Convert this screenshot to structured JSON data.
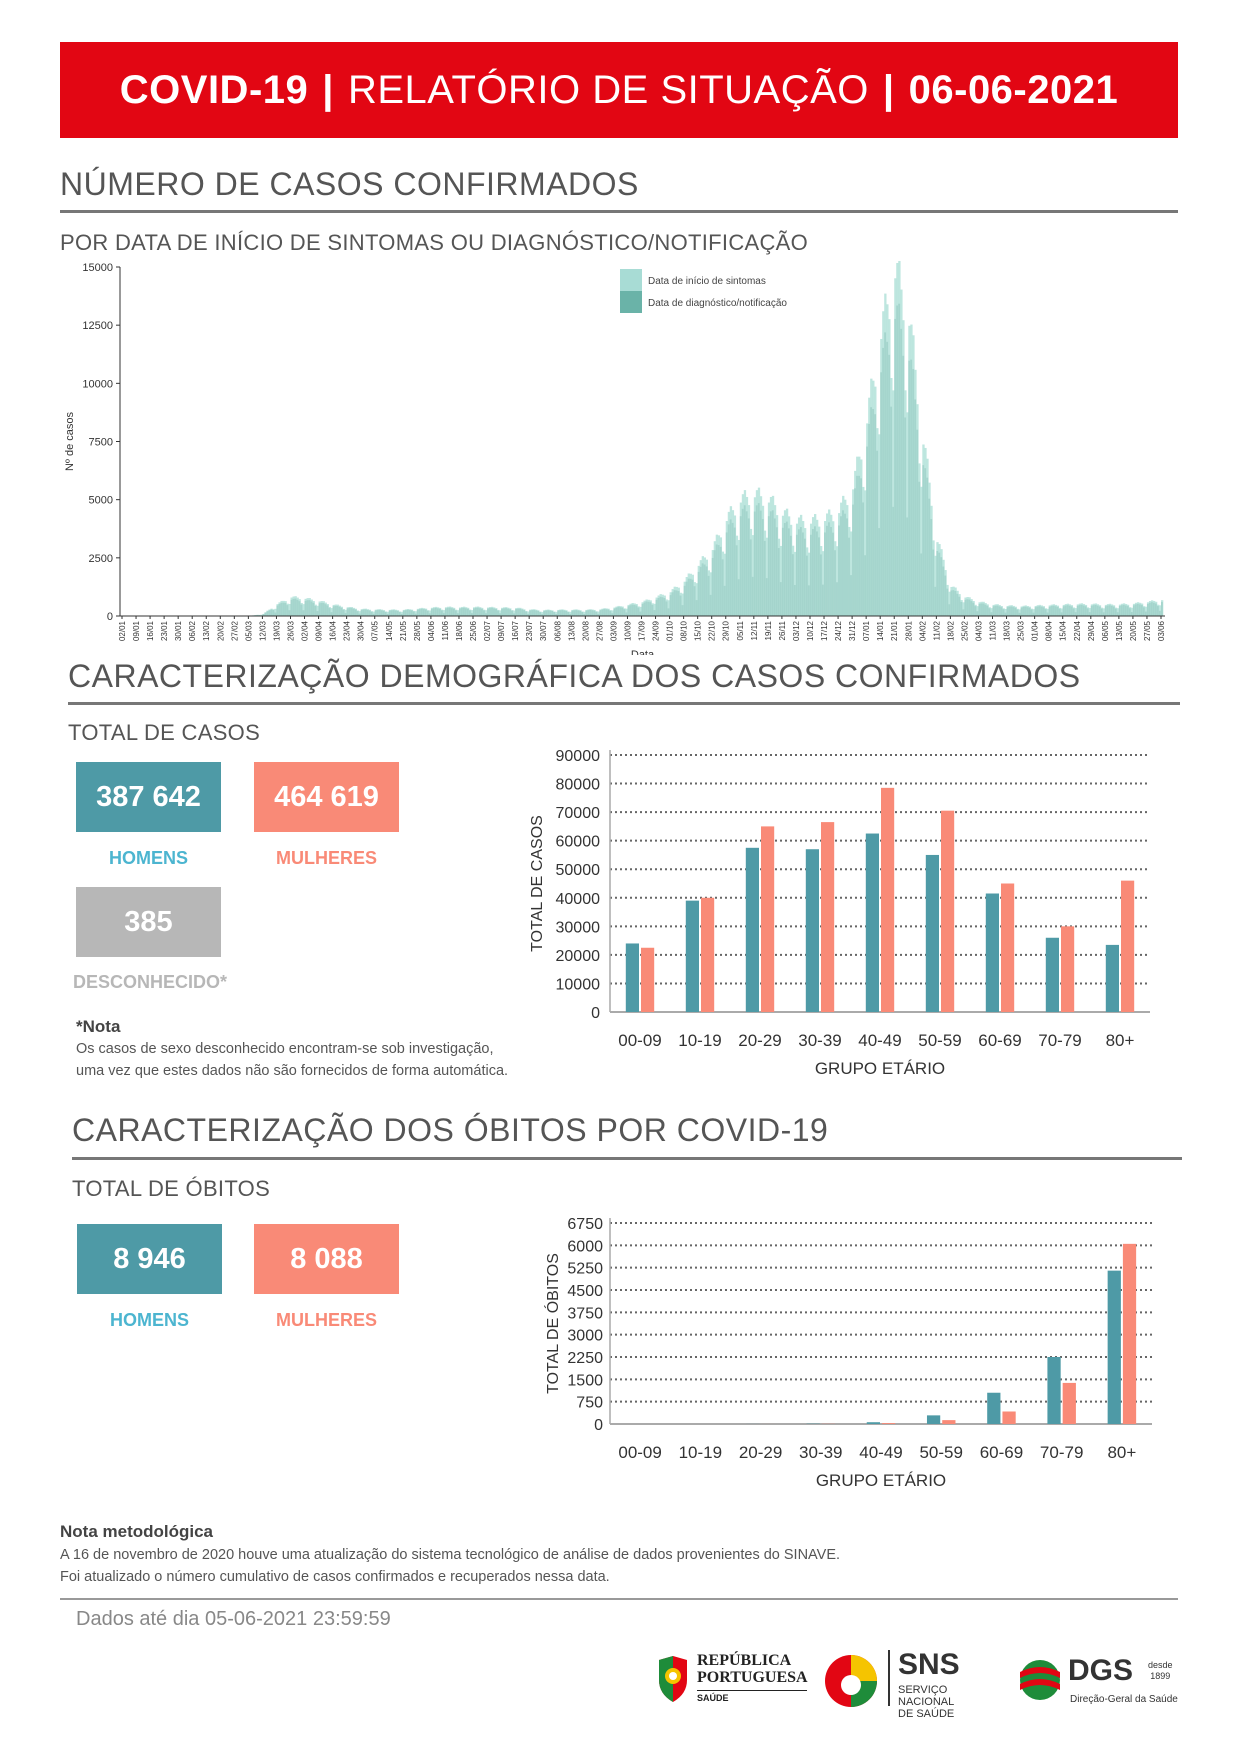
{
  "header": {
    "title_bold": "COVID-19",
    "separator": "|",
    "title_main": "RELATÓRIO DE SITUAÇÃO",
    "date": "06-06-2021"
  },
  "section_cases": {
    "title": "NÚMERO DE CASOS CONFIRMADOS",
    "subtitle": "POR DATA DE INÍCIO DE SINTOMAS OU DIAGNÓSTICO/NOTIFICAÇÃO"
  },
  "section_demo": {
    "title": "CARACTERIZAÇÃO DEMOGRÁFICA DOS CASOS CONFIRMADOS",
    "subtitle": "TOTAL DE CASOS",
    "men_value": "387 642",
    "men_label": "HOMENS",
    "women_value": "464 619",
    "women_label": "MULHERES",
    "unknown_value": "385",
    "unknown_label": "DESCONHECIDO*",
    "note_title": "*Nota",
    "note_line1": "Os casos de sexo desconhecido encontram-se sob investigação,",
    "note_line2": "uma vez que estes dados não são fornecidos de forma automática."
  },
  "section_deaths": {
    "title": "CARACTERIZAÇÃO DOS ÓBITOS POR COVID-19",
    "subtitle": "TOTAL DE ÓBITOS",
    "men_value": "8 946",
    "men_label": "HOMENS",
    "women_value": "8 088",
    "women_label": "MULHERES"
  },
  "methodology": {
    "title": "Nota metodológica",
    "line1": "A 16 de novembro de 2020 houve uma atualização do sistema tecnológico de análise de dados provenientes do SINAVE.",
    "line2": "Foi atualizado o número cumulativo de casos confirmados e recuperados nessa data."
  },
  "footer": {
    "data_until": "Dados até dia 05-06-2021 23:59:59",
    "logo_rp_line1": "REPÚBLICA",
    "logo_rp_line2": "PORTUGUESA",
    "logo_rp_line3": "SAÚDE",
    "logo_sns": "SNS",
    "logo_sns_sub1": "SERVIÇO NACIONAL",
    "logo_sns_sub2": "DE SAÚDE",
    "logo_dgs": "DGS",
    "logo_dgs_since": "desde",
    "logo_dgs_year": "1899",
    "logo_dgs_sub": "Direção-Geral da Saúde"
  },
  "colors": {
    "red": "#e20613",
    "teal": "#4e9aa6",
    "salmon": "#f98a77",
    "light_teal": "#a8dcd5",
    "dark_teal": "#6ab3a8"
  },
  "chart_data": [
    {
      "type": "area",
      "ylabel": "Nº de casos",
      "xlabel": "Data",
      "ylim": [
        0,
        15000
      ],
      "yticks": [
        0,
        2500,
        5000,
        7500,
        10000,
        12500,
        15000
      ],
      "legend_position": "top-right",
      "series": [
        {
          "name": "Data de início de sintomas"
        },
        {
          "name": "Data de diagnóstico/notificação"
        }
      ],
      "x": [
        "02/01",
        "09/01",
        "16/01",
        "23/01",
        "30/01",
        "06/02",
        "13/02",
        "20/02",
        "27/02",
        "05/03",
        "12/03",
        "19/03",
        "26/03",
        "02/04",
        "09/04",
        "16/04",
        "23/04",
        "30/04",
        "07/05",
        "14/05",
        "21/05",
        "28/05",
        "04/06",
        "11/06",
        "18/06",
        "25/06",
        "02/07",
        "09/07",
        "16/07",
        "23/07",
        "30/07",
        "06/08",
        "13/08",
        "20/08",
        "27/08",
        "03/09",
        "10/09",
        "17/09",
        "24/09",
        "01/10",
        "08/10",
        "15/10",
        "22/10",
        "29/10",
        "05/11",
        "12/11",
        "19/11",
        "26/11",
        "03/12",
        "10/12",
        "17/12",
        "24/12",
        "31/12",
        "07/01",
        "14/01",
        "21/01",
        "28/01",
        "04/02",
        "11/02",
        "18/02",
        "25/02",
        "04/03",
        "11/03",
        "18/03",
        "25/03",
        "01/04",
        "08/04",
        "15/04",
        "22/04",
        "29/04",
        "06/05",
        "13/05",
        "20/05",
        "27/05",
        "03/06"
      ],
      "values": [
        0,
        0,
        0,
        0,
        0,
        0,
        0,
        0,
        0,
        0,
        80,
        450,
        700,
        650,
        550,
        420,
        330,
        260,
        240,
        230,
        230,
        270,
        310,
        330,
        320,
        330,
        320,
        310,
        300,
        240,
        220,
        230,
        230,
        230,
        250,
        320,
        420,
        520,
        700,
        900,
        1300,
        1900,
        2500,
        3600,
        4300,
        4500,
        4300,
        3800,
        3500,
        3500,
        3600,
        3900,
        4800,
        7300,
        10500,
        12800,
        11000,
        6500,
        2800,
        1100,
        700,
        520,
        420,
        380,
        360,
        380,
        400,
        420,
        440,
        440,
        420,
        430,
        460,
        520,
        600
      ]
    },
    {
      "type": "bar",
      "xlabel": "GRUPO ETÁRIO",
      "ylabel": "TOTAL DE CASOS",
      "ylim": [
        0,
        90000
      ],
      "yticks": [
        0,
        10000,
        20000,
        30000,
        40000,
        50000,
        60000,
        70000,
        80000,
        90000
      ],
      "categories": [
        "00-09",
        "10-19",
        "20-29",
        "30-39",
        "40-49",
        "50-59",
        "60-69",
        "70-79",
        "80+"
      ],
      "series": [
        {
          "values": [
            24000,
            39000,
            57500,
            57000,
            62500,
            55000,
            41500,
            26000,
            23500
          ]
        },
        {
          "values": [
            22500,
            40000,
            65000,
            66500,
            78500,
            70500,
            45000,
            30000,
            46000
          ]
        }
      ]
    },
    {
      "type": "bar",
      "xlabel": "GRUPO ETÁRIO",
      "ylabel": "TOTAL DE ÓBITOS",
      "ylim": [
        0,
        6750
      ],
      "yticks": [
        0,
        750,
        1500,
        2250,
        3000,
        3750,
        4500,
        5250,
        6000,
        6750
      ],
      "categories": [
        "00-09",
        "10-19",
        "20-29",
        "30-39",
        "40-49",
        "50-59",
        "60-69",
        "70-79",
        "80+"
      ],
      "series": [
        {
          "values": [
            0,
            0,
            2,
            10,
            60,
            290,
            1050,
            2250,
            5150
          ]
        },
        {
          "values": [
            0,
            0,
            1,
            6,
            30,
            130,
            420,
            1380,
            6050
          ]
        }
      ]
    }
  ]
}
